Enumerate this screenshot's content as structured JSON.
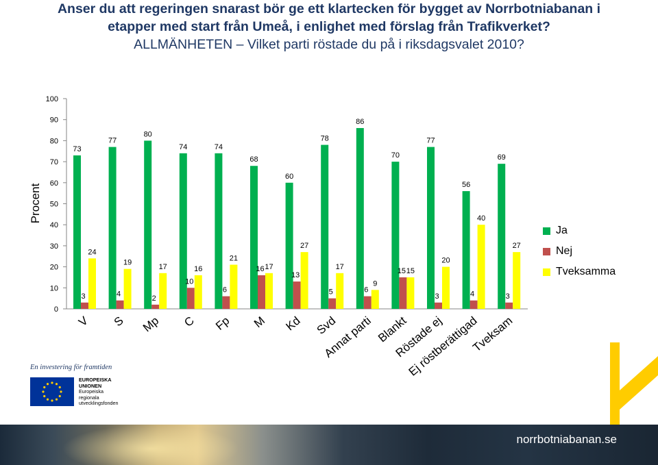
{
  "title": {
    "line1": "Anser du att regeringen snarast bör ge ett klartecken för bygget av Norrbotniabanan i",
    "line2": "etapper med start från Umeå, i enlighet med förslag från Trafikverket?",
    "line3": "ALLMÄNHETEN – Vilket parti röstade du på i riksdagsvalet 2010?"
  },
  "chart_data": {
    "type": "bar",
    "ylabel": "Procent",
    "ylim": [
      0,
      100
    ],
    "yticks": [
      0,
      10,
      20,
      30,
      40,
      50,
      60,
      70,
      80,
      90,
      100
    ],
    "categories": [
      "V",
      "S",
      "Mp",
      "C",
      "Fp",
      "M",
      "Kd",
      "Svd",
      "Annat parti",
      "Blankt",
      "Röstade ej",
      "Ej röstberättigad",
      "Tveksam"
    ],
    "series": [
      {
        "name": "Ja",
        "color": "#00b050",
        "values": [
          73,
          77,
          80,
          74,
          74,
          68,
          60,
          78,
          86,
          70,
          77,
          56,
          69
        ]
      },
      {
        "name": "Nej",
        "color": "#c0504d",
        "values": [
          3,
          4,
          2,
          10,
          6,
          16,
          13,
          5,
          6,
          15,
          3,
          4,
          3
        ]
      },
      {
        "name": "Tveksamma",
        "color": "#ffff00",
        "values": [
          24,
          19,
          17,
          16,
          21,
          17,
          27,
          17,
          9,
          15,
          20,
          40,
          27
        ]
      }
    ],
    "grid": false,
    "legend_position": "right"
  },
  "footer": {
    "tagline": "En investering för framtiden",
    "eu_line1": "EUROPEISKA",
    "eu_line2": "UNIONEN",
    "eu_line3": "Europeiska",
    "eu_line4": "regionala",
    "eu_line5": "utvecklingsfonden",
    "website": "norrbotniabanan.se"
  }
}
